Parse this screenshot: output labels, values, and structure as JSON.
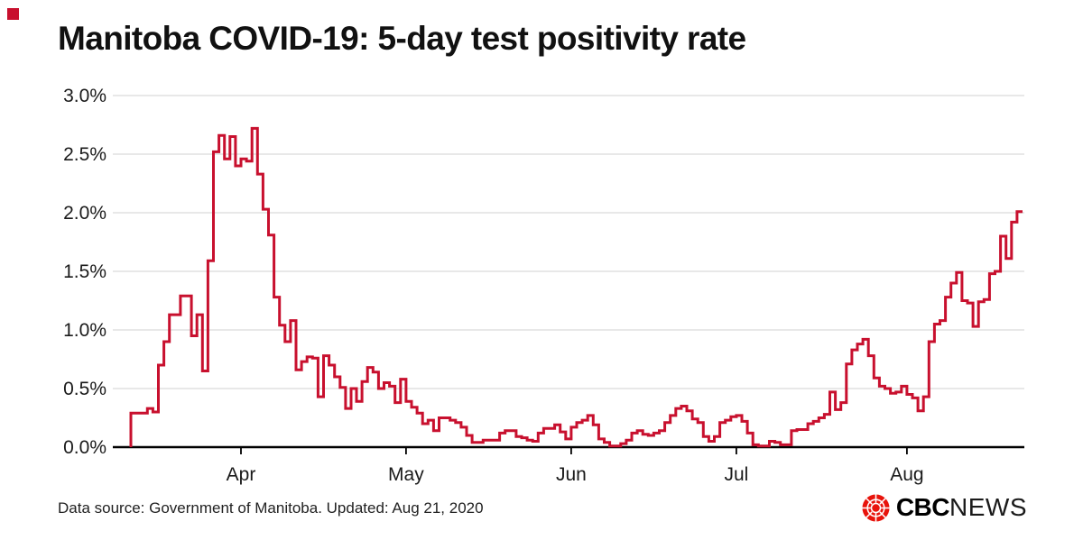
{
  "title": "Manitoba COVID-19: 5-day test positivity rate",
  "footer": {
    "source_line": "Data source: Government of Manitoba. Updated: Aug 21, 2020"
  },
  "brand": {
    "cbc": "CBC",
    "news": "NEWS"
  },
  "chart_data": {
    "type": "line",
    "step": true,
    "title": "Manitoba COVID-19: 5-day test positivity rate",
    "unit": "%",
    "ylim": [
      0,
      3.0
    ],
    "grid": "horizontal",
    "legend": "none",
    "line_color": "#c8102e",
    "y_ticks": [
      {
        "label": "3.0%",
        "value": 3.0
      },
      {
        "label": "2.5%",
        "value": 2.5
      },
      {
        "label": "2.0%",
        "value": 2.0
      },
      {
        "label": "1.5%",
        "value": 1.5
      },
      {
        "label": "1.0%",
        "value": 1.0
      },
      {
        "label": "0.5%",
        "value": 0.5
      },
      {
        "label": "0.0%",
        "value": 0.0
      }
    ],
    "x_ticks": [
      {
        "label": "Apr",
        "index": 20
      },
      {
        "label": "May",
        "index": 50
      },
      {
        "label": "Jun",
        "index": 80
      },
      {
        "label": "Jul",
        "index": 110
      },
      {
        "label": "Aug",
        "index": 141
      }
    ],
    "series": [
      {
        "name": "5-day test positivity rate",
        "values": [
          0.29,
          0.29,
          0.29,
          0.33,
          0.3,
          0.7,
          0.9,
          1.13,
          1.13,
          1.29,
          1.29,
          0.95,
          1.13,
          0.65,
          1.59,
          2.52,
          2.66,
          2.46,
          2.65,
          2.4,
          2.46,
          2.44,
          2.72,
          2.33,
          2.03,
          1.81,
          1.28,
          1.04,
          0.9,
          1.08,
          0.66,
          0.73,
          0.77,
          0.76,
          0.43,
          0.78,
          0.7,
          0.6,
          0.51,
          0.33,
          0.5,
          0.39,
          0.56,
          0.68,
          0.64,
          0.5,
          0.55,
          0.52,
          0.38,
          0.58,
          0.39,
          0.34,
          0.29,
          0.2,
          0.23,
          0.14,
          0.25,
          0.25,
          0.23,
          0.21,
          0.17,
          0.1,
          0.04,
          0.04,
          0.06,
          0.06,
          0.06,
          0.12,
          0.14,
          0.14,
          0.09,
          0.08,
          0.06,
          0.05,
          0.12,
          0.16,
          0.16,
          0.19,
          0.13,
          0.07,
          0.17,
          0.21,
          0.23,
          0.27,
          0.19,
          0.07,
          0.04,
          0.01,
          0.01,
          0.03,
          0.06,
          0.12,
          0.14,
          0.11,
          0.1,
          0.12,
          0.14,
          0.21,
          0.27,
          0.33,
          0.35,
          0.31,
          0.24,
          0.21,
          0.09,
          0.05,
          0.09,
          0.21,
          0.23,
          0.26,
          0.27,
          0.22,
          0.12,
          0.02,
          0.01,
          0.01,
          0.05,
          0.04,
          0.02,
          0.02,
          0.14,
          0.15,
          0.15,
          0.2,
          0.22,
          0.25,
          0.28,
          0.47,
          0.32,
          0.38,
          0.71,
          0.83,
          0.88,
          0.92,
          0.78,
          0.59,
          0.52,
          0.5,
          0.46,
          0.47,
          0.52,
          0.45,
          0.42,
          0.31,
          0.43,
          0.9,
          1.05,
          1.08,
          1.28,
          1.4,
          1.49,
          1.25,
          1.23,
          1.03,
          1.24,
          1.26,
          1.48,
          1.5,
          1.8,
          1.61,
          1.92,
          2.01
        ]
      }
    ]
  }
}
